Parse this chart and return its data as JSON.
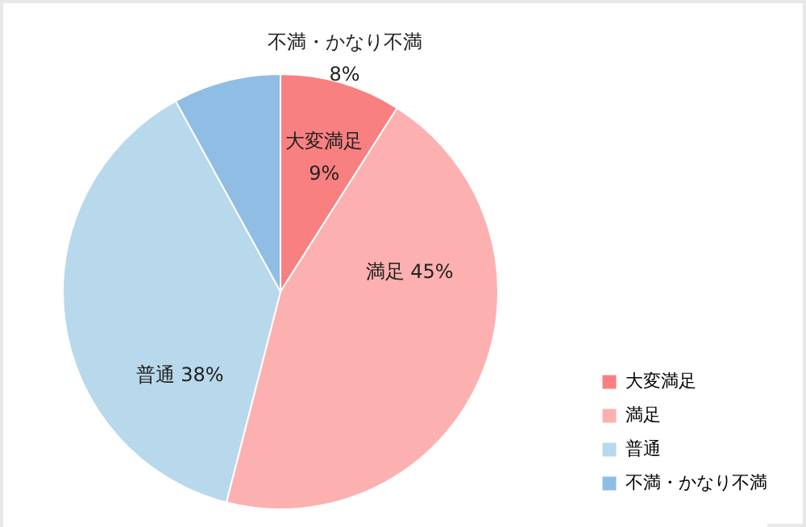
{
  "chart_data": {
    "type": "pie",
    "categories": [
      "大変満足",
      "満足",
      "普通",
      "不満・かなり不満"
    ],
    "values": [
      9,
      45,
      38,
      8
    ],
    "value_labels": [
      "9%",
      "45%",
      "38%",
      "8%"
    ],
    "colors": [
      "#f98080",
      "#fdb0b0",
      "#b8d8ec",
      "#90bde3"
    ],
    "legend": "bottom right"
  }
}
